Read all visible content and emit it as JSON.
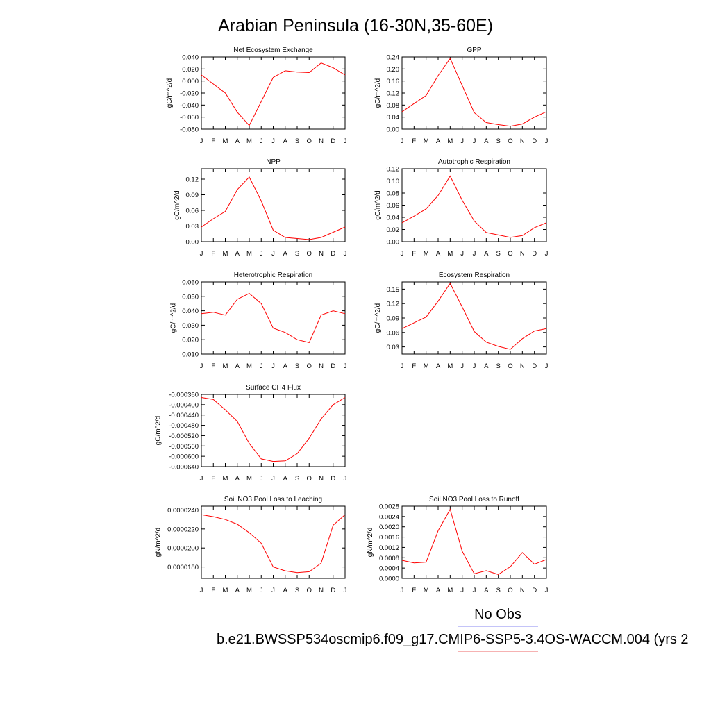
{
  "page": {
    "title": "Arabian Peninsula (16-30N,35-60E)",
    "legend": {
      "obs_label": "No Obs",
      "obs_color": "#8a8af0",
      "model_label": "b.e21.BWSSP534oscmip6.f09_g17.CMIP6-SSP5-3.4OS-WACCM.004 (yrs 2",
      "model_color": "#ee6666"
    },
    "line_color": "#ff0000"
  },
  "chart_data": [
    {
      "type": "line",
      "title": "Net Ecosystem Exchange",
      "ylabel": "gC/m^2/d",
      "x": [
        "J",
        "F",
        "M",
        "A",
        "M",
        "J",
        "J",
        "A",
        "S",
        "O",
        "N",
        "D",
        "J"
      ],
      "ylim": [
        -0.08,
        0.04
      ],
      "yticks": [
        "0.040",
        "0.020",
        "0.000",
        "-0.020",
        "-0.040",
        "-0.060",
        "-0.080"
      ],
      "series": [
        {
          "values": [
            0.01,
            -0.005,
            -0.02,
            -0.052,
            -0.074,
            -0.034,
            0.006,
            0.017,
            0.015,
            0.014,
            0.03,
            0.022,
            0.01
          ]
        }
      ]
    },
    {
      "type": "line",
      "title": "GPP",
      "ylabel": "gC/m^2/d",
      "x": [
        "J",
        "F",
        "M",
        "A",
        "M",
        "J",
        "J",
        "A",
        "S",
        "O",
        "N",
        "D",
        "J"
      ],
      "ylim": [
        0,
        0.24
      ],
      "yticks": [
        "0.24",
        "0.20",
        "0.16",
        "0.12",
        "0.08",
        "0.04",
        "0.00"
      ],
      "series": [
        {
          "values": [
            0.058,
            0.085,
            0.112,
            0.178,
            0.235,
            0.145,
            0.055,
            0.022,
            0.015,
            0.01,
            0.017,
            0.04,
            0.058
          ]
        }
      ]
    },
    {
      "type": "line",
      "title": "NPP",
      "ylabel": "gC/m^2/d",
      "x": [
        "J",
        "F",
        "M",
        "A",
        "M",
        "J",
        "J",
        "A",
        "S",
        "O",
        "N",
        "D",
        "J"
      ],
      "ylim": [
        0,
        0.14
      ],
      "yticks": [
        "0.12",
        "0.09",
        "0.06",
        "0.03",
        "0.00"
      ],
      "series": [
        {
          "values": [
            0.028,
            0.044,
            0.058,
            0.1,
            0.124,
            0.078,
            0.022,
            0.008,
            0.006,
            0.004,
            0.008,
            0.018,
            0.028
          ]
        }
      ]
    },
    {
      "type": "line",
      "title": "Autotrophic Respiration",
      "ylabel": "gC/m^2/d",
      "x": [
        "J",
        "F",
        "M",
        "A",
        "M",
        "J",
        "J",
        "A",
        "S",
        "O",
        "N",
        "D",
        "J"
      ],
      "ylim": [
        0,
        0.12
      ],
      "yticks": [
        "0.12",
        "0.10",
        "0.08",
        "0.06",
        "0.04",
        "0.02",
        "0.00"
      ],
      "series": [
        {
          "values": [
            0.031,
            0.042,
            0.054,
            0.076,
            0.108,
            0.068,
            0.034,
            0.015,
            0.011,
            0.007,
            0.01,
            0.023,
            0.031
          ]
        }
      ]
    },
    {
      "type": "line",
      "title": "Heterotrophic Respiration",
      "ylabel": "gC/m^2/d",
      "x": [
        "J",
        "F",
        "M",
        "A",
        "M",
        "J",
        "J",
        "A",
        "S",
        "O",
        "N",
        "D",
        "J"
      ],
      "ylim": [
        0.01,
        0.06
      ],
      "yticks": [
        "0.060",
        "0.050",
        "0.040",
        "0.030",
        "0.020",
        "0.010"
      ],
      "series": [
        {
          "values": [
            0.038,
            0.039,
            0.037,
            0.048,
            0.052,
            0.045,
            0.028,
            0.025,
            0.02,
            0.018,
            0.037,
            0.04,
            0.038
          ]
        }
      ]
    },
    {
      "type": "line",
      "title": "Ecosystem Respiration",
      "ylabel": "gC/m^2/d",
      "x": [
        "J",
        "F",
        "M",
        "A",
        "M",
        "J",
        "J",
        "A",
        "S",
        "O",
        "N",
        "D",
        "J"
      ],
      "ylim": [
        0.015,
        0.165
      ],
      "yticks": [
        "0.15",
        "0.12",
        "0.09",
        "0.06",
        "0.03"
      ],
      "series": [
        {
          "values": [
            0.068,
            0.08,
            0.092,
            0.125,
            0.162,
            0.113,
            0.062,
            0.04,
            0.031,
            0.025,
            0.047,
            0.063,
            0.068
          ]
        }
      ]
    },
    {
      "type": "line",
      "title": "Surface CH4 Flux",
      "ylabel": "gC/m^2/d",
      "x": [
        "J",
        "F",
        "M",
        "A",
        "M",
        "J",
        "J",
        "A",
        "S",
        "O",
        "N",
        "D",
        "J"
      ],
      "ylim": [
        -0.00064,
        -0.00036
      ],
      "yticks": [
        "-0.000360",
        "-0.000400",
        "-0.000440",
        "-0.000480",
        "-0.000520",
        "-0.000560",
        "-0.000600",
        "-0.000640"
      ],
      "series": [
        {
          "values": [
            -0.000372,
            -0.00038,
            -0.00042,
            -0.000465,
            -0.00055,
            -0.00061,
            -0.00062,
            -0.000618,
            -0.00059,
            -0.00053,
            -0.000455,
            -0.0004,
            -0.000372
          ]
        }
      ]
    },
    {
      "type": "line",
      "title": "Soil NO3 Pool Loss to Leaching",
      "ylabel": "gN/m^2/d",
      "x": [
        "J",
        "F",
        "M",
        "A",
        "M",
        "J",
        "J",
        "A",
        "S",
        "O",
        "N",
        "D",
        "J"
      ],
      "ylim": [
        1.68e-05,
        2.44e-05
      ],
      "yticks": [
        "0.0000240",
        "0.0000220",
        "0.0000200",
        "0.0000180"
      ],
      "series": [
        {
          "values": [
            2.35e-05,
            2.33e-05,
            2.3e-05,
            2.25e-05,
            2.16e-05,
            2.05e-05,
            1.8e-05,
            1.76e-05,
            1.74e-05,
            1.75e-05,
            1.84e-05,
            2.24e-05,
            2.35e-05
          ]
        }
      ]
    },
    {
      "type": "line",
      "title": "Soil NO3 Pool Loss to Runoff",
      "ylabel": "gN/m^2/d",
      "x": [
        "J",
        "F",
        "M",
        "A",
        "M",
        "J",
        "J",
        "A",
        "S",
        "O",
        "N",
        "D",
        "J"
      ],
      "ylim": [
        0,
        0.0028
      ],
      "yticks": [
        "0.0028",
        "0.0024",
        "0.0020",
        "0.0016",
        "0.0012",
        "0.0008",
        "0.0004",
        "0.0000"
      ],
      "series": [
        {
          "values": [
            0.0007,
            0.0006,
            0.00063,
            0.00185,
            0.00268,
            0.00105,
            0.00018,
            0.0003,
            0.00015,
            0.00045,
            0.001,
            0.00055,
            0.00073
          ]
        }
      ]
    }
  ]
}
